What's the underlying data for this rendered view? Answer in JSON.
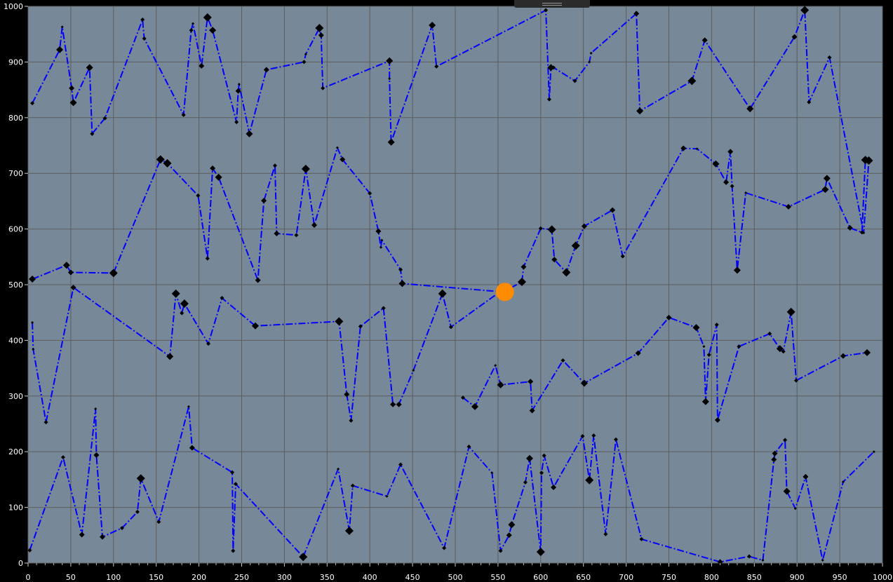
{
  "chart_data": {
    "type": "scatter",
    "background_color": "#778899",
    "grid": true,
    "grid_color": "#5c5c5c",
    "line_color": "#0000ff",
    "line_style": "dash-dot",
    "marker_color": "#000000",
    "marker_shape": "diamond",
    "highlight_color": "#ff8c00",
    "xlim": [
      0,
      1000
    ],
    "ylim": [
      0,
      1000
    ],
    "x_ticks": [
      0,
      50,
      100,
      150,
      200,
      250,
      300,
      350,
      400,
      450,
      500,
      550,
      600,
      650,
      700,
      750,
      800,
      850,
      900,
      950,
      1000
    ],
    "y_ticks": [
      0,
      100,
      200,
      300,
      400,
      500,
      600,
      700,
      800,
      900,
      1000
    ],
    "series": [
      {
        "points": [
          [
            5,
            826
          ],
          [
            37,
            922
          ],
          [
            40,
            963
          ],
          [
            51,
            853
          ],
          [
            53,
            827
          ],
          [
            72,
            890
          ],
          [
            75,
            771
          ],
          [
            90,
            799
          ],
          [
            134,
            976
          ],
          [
            136,
            942
          ],
          [
            182,
            805
          ],
          [
            191,
            957
          ],
          [
            193,
            969
          ],
          [
            203,
            893
          ],
          [
            210,
            980
          ],
          [
            216,
            957
          ],
          [
            244,
            792
          ],
          [
            246,
            848
          ],
          [
            247,
            860
          ],
          [
            259,
            771
          ],
          [
            279,
            886
          ],
          [
            323,
            900
          ],
          [
            325,
            914
          ],
          [
            341,
            961
          ],
          [
            343,
            948
          ],
          [
            345,
            853
          ],
          [
            423,
            902
          ],
          [
            423,
            870
          ],
          [
            425,
            756
          ],
          [
            473,
            966
          ],
          [
            478,
            892
          ],
          [
            606,
            993
          ],
          [
            610,
            833
          ],
          [
            612,
            890
          ],
          [
            615,
            890
          ],
          [
            640,
            866
          ],
          [
            657,
            900
          ],
          [
            659,
            916
          ],
          [
            712,
            987
          ],
          [
            716,
            812
          ],
          [
            777,
            866
          ],
          [
            792,
            939
          ],
          [
            845,
            816
          ],
          [
            897,
            945
          ],
          [
            909,
            993
          ],
          [
            914,
            828
          ],
          [
            938,
            908
          ],
          [
            978,
            593
          ],
          [
            984,
            723
          ]
        ],
        "sizes": [
          3,
          5,
          2,
          4,
          5,
          5,
          3,
          3,
          3,
          3,
          3,
          3,
          2,
          4,
          6,
          5,
          3,
          4,
          2,
          5,
          4,
          3,
          2,
          6,
          4,
          3,
          5,
          2,
          5,
          5,
          3,
          3,
          3,
          5,
          3,
          3,
          2,
          2,
          4,
          5,
          6,
          4,
          5,
          4,
          6,
          3,
          3,
          2,
          6
        ]
      },
      {
        "points": [
          [
            5,
            510
          ],
          [
            45,
            535
          ],
          [
            50,
            522
          ],
          [
            100,
            521
          ],
          [
            155,
            725
          ],
          [
            163,
            718
          ],
          [
            199,
            660
          ],
          [
            210,
            547
          ],
          [
            216,
            709
          ],
          [
            223,
            693
          ],
          [
            269,
            508
          ],
          [
            276,
            651
          ],
          [
            289,
            714
          ],
          [
            291,
            592
          ],
          [
            314,
            589
          ],
          [
            325,
            708
          ],
          [
            335,
            607
          ],
          [
            362,
            746
          ],
          [
            368,
            725
          ],
          [
            400,
            664
          ],
          [
            410,
            596
          ],
          [
            413,
            567
          ],
          [
            414,
            580
          ],
          [
            436,
            527
          ],
          [
            438,
            502
          ],
          [
            556,
            487
          ],
          [
            578,
            505
          ],
          [
            580,
            532
          ],
          [
            600,
            601
          ],
          [
            613,
            599
          ],
          [
            616,
            545
          ],
          [
            630,
            522
          ],
          [
            641,
            570
          ],
          [
            651,
            605
          ],
          [
            684,
            634
          ],
          [
            696,
            551
          ],
          [
            767,
            745
          ],
          [
            783,
            744
          ],
          [
            805,
            717
          ],
          [
            817,
            684
          ],
          [
            822,
            739
          ],
          [
            824,
            677
          ],
          [
            830,
            526
          ],
          [
            840,
            665
          ],
          [
            890,
            640
          ],
          [
            933,
            671
          ],
          [
            935,
            691
          ],
          [
            962,
            602
          ],
          [
            976,
            594
          ],
          [
            980,
            724
          ]
        ],
        "sizes": [
          5,
          5,
          4,
          6,
          6,
          6,
          3,
          3,
          4,
          5,
          4,
          4,
          3,
          4,
          3,
          6,
          4,
          2,
          4,
          3,
          4,
          2,
          2,
          3,
          5,
          0,
          6,
          4,
          3,
          6,
          4,
          6,
          6,
          4,
          4,
          3,
          4,
          2,
          5,
          4,
          4,
          3,
          5,
          2,
          4,
          5,
          5,
          4,
          3,
          6
        ]
      },
      {
        "points": [
          [
            5,
            432
          ],
          [
            6,
            384
          ],
          [
            21,
            253
          ],
          [
            53,
            495
          ],
          [
            166,
            371
          ],
          [
            173,
            484
          ],
          [
            180,
            449
          ],
          [
            183,
            466
          ],
          [
            211,
            394
          ],
          [
            227,
            476
          ],
          [
            266,
            426
          ],
          [
            364,
            434
          ],
          [
            373,
            303
          ],
          [
            378,
            256
          ],
          [
            389,
            425
          ],
          [
            416,
            458
          ],
          [
            427,
            285
          ],
          [
            434,
            285
          ],
          [
            451,
            346
          ],
          [
            485,
            484
          ],
          [
            495,
            424
          ],
          [
            553,
            488
          ]
        ],
        "sizes": [
          2,
          2,
          3,
          4,
          5,
          6,
          3,
          6,
          3,
          3,
          5,
          6,
          4,
          3,
          3,
          3,
          4,
          4,
          2,
          6,
          3,
          0
        ]
      },
      {
        "points": [
          [
            509,
            297
          ],
          [
            523,
            281
          ],
          [
            547,
            355
          ],
          [
            553,
            320
          ],
          [
            588,
            326
          ],
          [
            590,
            274
          ],
          [
            626,
            364
          ],
          [
            651,
            323
          ],
          [
            714,
            377
          ],
          [
            750,
            441
          ],
          [
            782,
            423
          ],
          [
            791,
            389
          ],
          [
            793,
            290
          ],
          [
            797,
            374
          ],
          [
            806,
            428
          ],
          [
            807,
            257
          ],
          [
            832,
            389
          ],
          [
            868,
            412
          ],
          [
            880,
            385
          ],
          [
            884,
            380
          ],
          [
            893,
            451
          ],
          [
            899,
            328
          ],
          [
            954,
            372
          ],
          [
            982,
            378
          ]
        ],
        "sizes": [
          3,
          5,
          2,
          5,
          4,
          4,
          3,
          5,
          4,
          4,
          5,
          2,
          5,
          3,
          3,
          4,
          3,
          3,
          5,
          3,
          6,
          3,
          4,
          5
        ]
      },
      {
        "points": [
          [
            2,
            23
          ],
          [
            41,
            190
          ],
          [
            63,
            51
          ],
          [
            79,
            277
          ],
          [
            80,
            194
          ],
          [
            87,
            47
          ],
          [
            110,
            63
          ],
          [
            128,
            92
          ],
          [
            132,
            152
          ],
          [
            153,
            74
          ],
          [
            188,
            281
          ],
          [
            192,
            207
          ],
          [
            239,
            163
          ],
          [
            240,
            22
          ],
          [
            243,
            142
          ],
          [
            322,
            11
          ],
          [
            363,
            169
          ],
          [
            376,
            58
          ],
          [
            380,
            139
          ],
          [
            420,
            120
          ],
          [
            436,
            177
          ],
          [
            487,
            27
          ],
          [
            516,
            209
          ],
          [
            543,
            162
          ],
          [
            553,
            22
          ],
          [
            563,
            50
          ],
          [
            566,
            69
          ],
          [
            582,
            145
          ],
          [
            587,
            188
          ],
          [
            600,
            20
          ],
          [
            601,
            162
          ],
          [
            604,
            193
          ],
          [
            615,
            136
          ],
          [
            649,
            228
          ],
          [
            657,
            149
          ],
          [
            662,
            229
          ],
          [
            676,
            52
          ],
          [
            688,
            222
          ],
          [
            718,
            43
          ],
          [
            810,
            2
          ],
          [
            844,
            12
          ],
          [
            860,
            5
          ],
          [
            873,
            186
          ],
          [
            874,
            197
          ],
          [
            886,
            221
          ],
          [
            888,
            129
          ],
          [
            898,
            98
          ],
          [
            910,
            155
          ],
          [
            930,
            5
          ],
          [
            954,
            146
          ],
          [
            990,
            200
          ]
        ],
        "sizes": [
          3,
          3,
          4,
          2,
          4,
          4,
          3,
          3,
          6,
          3,
          2,
          4,
          3,
          3,
          3,
          6,
          2,
          6,
          3,
          2,
          3,
          3,
          3,
          2,
          3,
          4,
          5,
          3,
          5,
          6,
          3,
          3,
          4,
          3,
          6,
          3,
          3,
          3,
          3,
          4,
          3,
          2,
          4,
          4,
          3,
          5,
          2,
          4,
          2,
          2,
          2
        ]
      }
    ],
    "highlight_point": [
      558,
      487
    ]
  }
}
